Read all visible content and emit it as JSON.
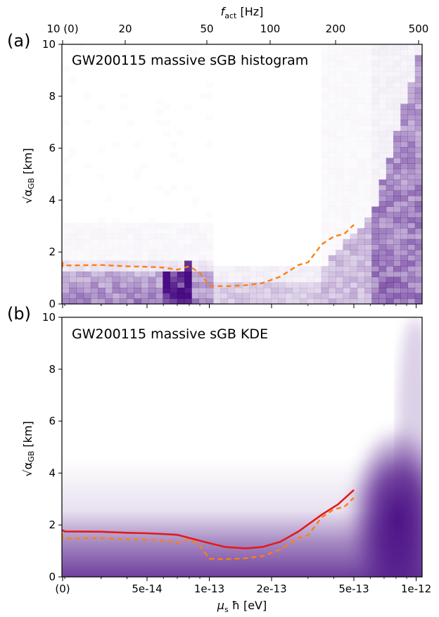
{
  "figure": {
    "top_axis_label_main": "f",
    "top_axis_label_sub": "act",
    "top_axis_label_unit": " [Hz]",
    "top_ticks": [
      "10 (0)",
      "20",
      "50",
      "100",
      "200",
      "500"
    ],
    "x_axis_label_main": "μ",
    "x_axis_label_sub": "s",
    "x_axis_label_rest": " ħ [eV]",
    "x_ticks": [
      "(0)",
      "5e-14",
      "1e-13",
      "2e-13",
      "5e-13",
      "1e-12"
    ],
    "y_axis_label": "√α",
    "y_axis_label_sub": "GB",
    "y_axis_label_unit": " [km]",
    "y_ticks": [
      "0",
      "2",
      "4",
      "6",
      "8",
      "10"
    ]
  },
  "colors": {
    "density": "#3f007d",
    "bound_dashed": "#ff7f0e",
    "bound_solid": "#e31a1c"
  },
  "chart_data": [
    {
      "type": "heatmap",
      "panel_label": "(a)",
      "title": "GW200115 massive sGB histogram",
      "xlabel": "μs ħ [eV]",
      "ylabel": "√α_GB [km]",
      "x_scale": "log (first tick is zero mass)",
      "x_ticks": [
        "(0)",
        "5e-14",
        "1e-13",
        "2e-13",
        "5e-13",
        "1e-12"
      ],
      "top_xlabel": "f_act [Hz]",
      "top_ticks": [
        "10 (0)",
        "20",
        "50",
        "100",
        "200",
        "500"
      ],
      "ylim": [
        0,
        10
      ],
      "colormap": "Purples",
      "series": [
        {
          "style": "dashed",
          "color": "#ff7f0e",
          "x": [
            0,
            1e-14,
            2e-14,
            3e-14,
            4e-14,
            5e-14,
            6e-14,
            7e-14,
            8e-14,
            9e-14,
            1e-13,
            1.2e-13,
            1.5e-13,
            1.8e-13,
            2.2e-13,
            2.7e-13,
            3e-13,
            3.5e-13,
            4e-13,
            4.5e-13,
            5e-13
          ],
          "y": [
            1.62,
            1.45,
            1.48,
            1.5,
            1.45,
            1.43,
            1.4,
            1.32,
            1.45,
            1.2,
            0.7,
            0.68,
            0.72,
            0.8,
            1.05,
            1.5,
            1.6,
            2.3,
            2.6,
            2.7,
            3.05
          ]
        }
      ]
    },
    {
      "type": "heatmap",
      "panel_label": "(b)",
      "title": "GW200115 massive sGB KDE",
      "xlabel": "μs ħ [eV]",
      "ylabel": "√α_GB [km]",
      "x_scale": "log (first tick is zero mass)",
      "x_ticks": [
        "(0)",
        "5e-14",
        "1e-13",
        "2e-13",
        "5e-13",
        "1e-12"
      ],
      "ylim": [
        0,
        10
      ],
      "colormap": "Purples",
      "series": [
        {
          "style": "solid",
          "color": "#e31a1c",
          "x": [
            0,
            1e-14,
            2e-14,
            3e-14,
            4e-14,
            5e-14,
            6e-14,
            7e-14,
            8e-14,
            1e-13,
            1.2e-13,
            1.5e-13,
            1.8e-13,
            2.2e-13,
            2.7e-13,
            3.5e-13,
            4.2e-13,
            5e-13
          ],
          "y": [
            1.82,
            1.8,
            1.75,
            1.74,
            1.7,
            1.68,
            1.65,
            1.62,
            1.5,
            1.3,
            1.15,
            1.1,
            1.15,
            1.35,
            1.75,
            2.4,
            2.8,
            3.35
          ]
        },
        {
          "style": "dashed",
          "color": "#ff7f0e",
          "x": [
            0,
            1e-14,
            2e-14,
            3e-14,
            4e-14,
            5e-14,
            6e-14,
            7e-14,
            8e-14,
            9e-14,
            1e-13,
            1.2e-13,
            1.5e-13,
            1.8e-13,
            2.2e-13,
            2.7e-13,
            3e-13,
            3.5e-13,
            4e-13,
            4.5e-13,
            5e-13
          ],
          "y": [
            1.62,
            1.45,
            1.48,
            1.5,
            1.45,
            1.43,
            1.4,
            1.32,
            1.45,
            1.2,
            0.7,
            0.68,
            0.72,
            0.8,
            1.05,
            1.5,
            1.6,
            2.3,
            2.6,
            2.7,
            3.05
          ]
        }
      ]
    }
  ]
}
